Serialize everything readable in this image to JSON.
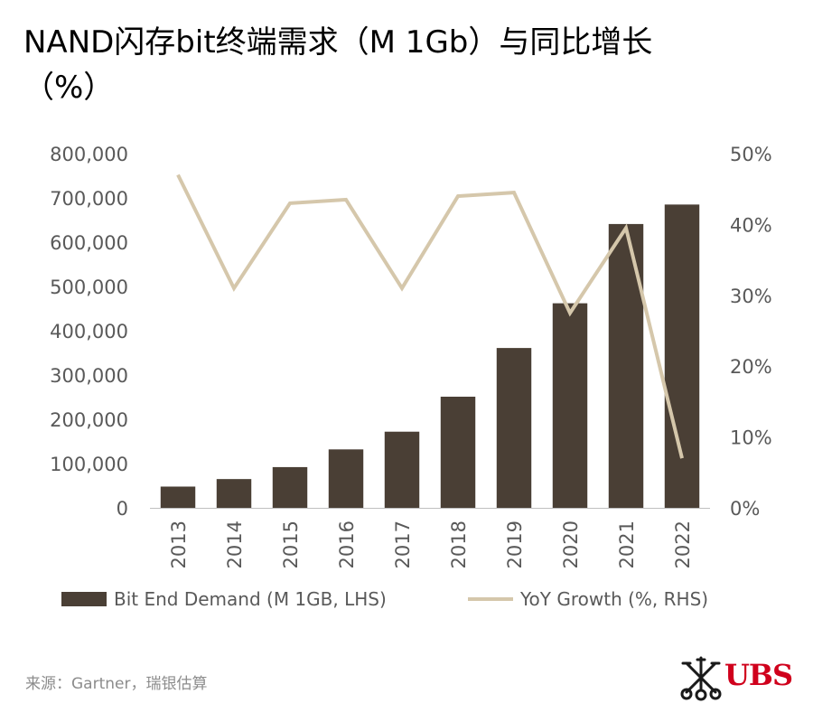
{
  "chart_data": {
    "type": "bar",
    "title": "NAND闪存bit终端需求（M 1Gb）与同比增长（%）",
    "categories": [
      "2013",
      "2014",
      "2015",
      "2016",
      "2017",
      "2018",
      "2019",
      "2020",
      "2021",
      "2022"
    ],
    "series": [
      {
        "name": "Bit End Demand (M 1GB, LHS)",
        "type": "bar",
        "axis": "left",
        "values": [
          48000,
          65000,
          92000,
          132000,
          172000,
          251000,
          361000,
          462000,
          641000,
          685000
        ]
      },
      {
        "name": "YoY Growth (%, RHS)",
        "type": "line",
        "axis": "right",
        "values": [
          47,
          31,
          43,
          43.5,
          31,
          44,
          44.5,
          27.5,
          39.5,
          7
        ]
      }
    ],
    "y_left": {
      "min": 0,
      "max": 800000,
      "step": 100000,
      "tick_labels": [
        "0",
        "100,000",
        "200,000",
        "300,000",
        "400,000",
        "500,000",
        "600,000",
        "700,000",
        "800,000"
      ]
    },
    "y_right": {
      "min": 0,
      "max": 50,
      "step": 10,
      "tick_labels": [
        "0%",
        "10%",
        "20%",
        "30%",
        "40%",
        "50%"
      ]
    },
    "grid": false,
    "legend_position": "bottom",
    "colors": {
      "bar": "#4a3f35",
      "line": "#d5c7ab",
      "tick": "#595959"
    }
  },
  "source": "来源：Gartner，瑞银估算",
  "logo": {
    "text": "UBS",
    "color": "#d0001c"
  }
}
